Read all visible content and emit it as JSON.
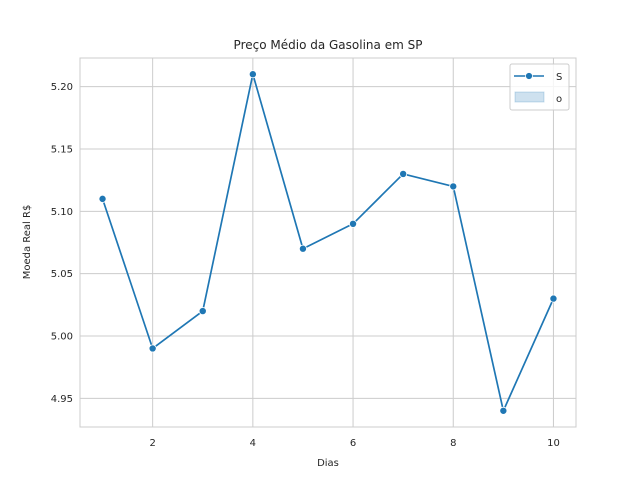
{
  "chart_data": {
    "type": "line",
    "title": "Preço Médio da Gasolina em SP",
    "xlabel": "Dias",
    "ylabel": "Moeda Real R$",
    "x": [
      1,
      2,
      3,
      4,
      5,
      6,
      7,
      8,
      9,
      10
    ],
    "series": [
      {
        "name": "S",
        "values": [
          5.11,
          4.99,
          5.02,
          5.21,
          5.07,
          5.09,
          5.13,
          5.12,
          4.94,
          5.03
        ]
      }
    ],
    "legend_entries": [
      "S",
      "o"
    ],
    "xlim": [
      0.55,
      10.45
    ],
    "ylim": [
      4.927,
      5.223
    ],
    "xticks": [
      2,
      4,
      6,
      8,
      10
    ],
    "yticks": [
      4.95,
      5.0,
      5.05,
      5.1,
      5.15,
      5.2
    ],
    "ytick_labels": [
      "4.95",
      "5.00",
      "5.05",
      "5.10",
      "5.15",
      "5.20"
    ],
    "grid": true,
    "legend_position": "top-right",
    "colors": {
      "line": "#1f77b4",
      "grid": "#cccccc",
      "spine": "#cccccc",
      "text": "#262626",
      "band_fill": "#c6dbef"
    }
  }
}
